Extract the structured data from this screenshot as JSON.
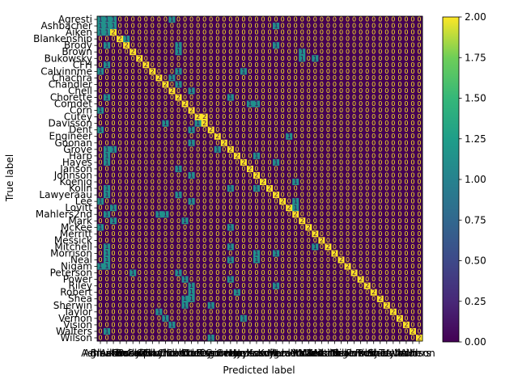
{
  "chart_data": {
    "type": "heatmap",
    "title": "",
    "xlabel": "Predicted label",
    "ylabel": "True label",
    "labels": [
      "Agresti",
      "Ashbacher",
      "Aiken",
      "Blankenship",
      "Brody",
      "Brown",
      "Bukowsky",
      "CFH",
      "Calvinnme",
      "Chachra",
      "Chandler",
      "Chell",
      "Chorette",
      "Comdet",
      "Corn",
      "Cutey",
      "Davisson",
      "Dent",
      "Engineer",
      "Goonan",
      "Grove",
      "Harp",
      "Hayes",
      "Janson",
      "Johnson",
      "Koenig",
      "Kolln",
      "Lawyeraau",
      "Lee",
      "Lovitt",
      "Mahlers2nd",
      "Mark",
      "McKee",
      "Merritt",
      "Messick",
      "Mitchell",
      "Morrison",
      "Neal",
      "Nigam",
      "Peterson",
      "Power",
      "Riley",
      "Robert",
      "Shea",
      "Sherwin",
      "Taylor",
      "Vernon",
      "Vision",
      "Walters",
      "Wilson"
    ],
    "value_range": [
      0,
      2
    ],
    "colorbar_ticks": [
      "0.00",
      "0.25",
      "0.50",
      "0.75",
      "1.00",
      "1.25",
      "1.50",
      "1.75",
      "2.00"
    ],
    "colormap": "viridis",
    "colors": {
      "zero": "#440154",
      "one": "#21918c",
      "two": "#fde725",
      "cell_text": "#fde725"
    },
    "cells": [
      [
        0,
        0,
        1
      ],
      [
        0,
        1,
        1
      ],
      [
        0,
        2,
        1
      ],
      [
        0,
        11,
        1
      ],
      [
        1,
        0,
        1
      ],
      [
        1,
        1,
        1
      ],
      [
        1,
        2,
        1
      ],
      [
        1,
        27,
        1
      ],
      [
        2,
        0,
        1
      ],
      [
        2,
        1,
        1
      ],
      [
        2,
        2,
        2
      ],
      [
        3,
        3,
        2
      ],
      [
        3,
        4,
        1
      ],
      [
        4,
        1,
        1
      ],
      [
        4,
        4,
        2
      ],
      [
        4,
        12,
        1
      ],
      [
        4,
        27,
        1
      ],
      [
        5,
        5,
        2
      ],
      [
        5,
        12,
        1
      ],
      [
        5,
        31,
        1
      ],
      [
        6,
        6,
        2
      ],
      [
        6,
        31,
        1
      ],
      [
        6,
        33,
        1
      ],
      [
        7,
        1,
        1
      ],
      [
        7,
        7,
        2
      ],
      [
        8,
        0,
        1
      ],
      [
        8,
        8,
        2
      ],
      [
        8,
        12,
        1
      ],
      [
        8,
        22,
        1
      ],
      [
        9,
        9,
        2
      ],
      [
        9,
        11,
        1
      ],
      [
        10,
        10,
        2
      ],
      [
        10,
        12,
        1
      ],
      [
        11,
        11,
        2
      ],
      [
        11,
        14,
        1
      ],
      [
        12,
        1,
        1
      ],
      [
        12,
        12,
        2
      ],
      [
        12,
        20,
        1
      ],
      [
        13,
        13,
        2
      ],
      [
        13,
        23,
        1
      ],
      [
        13,
        24,
        1
      ],
      [
        14,
        0,
        1
      ],
      [
        14,
        14,
        2
      ],
      [
        15,
        15,
        2
      ],
      [
        15,
        16,
        2
      ],
      [
        16,
        10,
        1
      ],
      [
        16,
        16,
        2
      ],
      [
        16,
        15,
        1
      ],
      [
        17,
        0,
        1
      ],
      [
        17,
        17,
        2
      ],
      [
        17,
        14,
        1
      ],
      [
        18,
        18,
        2
      ],
      [
        18,
        29,
        1
      ],
      [
        19,
        14,
        1
      ],
      [
        19,
        19,
        2
      ],
      [
        20,
        1,
        1
      ],
      [
        20,
        2,
        1
      ],
      [
        20,
        20,
        2
      ],
      [
        20,
        18,
        1
      ],
      [
        21,
        1,
        1
      ],
      [
        21,
        21,
        2
      ],
      [
        21,
        24,
        1
      ],
      [
        22,
        1,
        1
      ],
      [
        22,
        22,
        2
      ],
      [
        22,
        27,
        1
      ],
      [
        23,
        23,
        2
      ],
      [
        23,
        12,
        1
      ],
      [
        24,
        24,
        2
      ],
      [
        24,
        14,
        1
      ],
      [
        25,
        25,
        2
      ],
      [
        25,
        30,
        1
      ],
      [
        26,
        1,
        1
      ],
      [
        26,
        26,
        2
      ],
      [
        26,
        20,
        1
      ],
      [
        26,
        24,
        1
      ],
      [
        27,
        1,
        1
      ],
      [
        27,
        27,
        2
      ],
      [
        27,
        12,
        1
      ],
      [
        28,
        0,
        1
      ],
      [
        28,
        28,
        2
      ],
      [
        28,
        14,
        1
      ],
      [
        28,
        30,
        1
      ],
      [
        29,
        2,
        1
      ],
      [
        29,
        29,
        2
      ],
      [
        29,
        30,
        1
      ],
      [
        30,
        1,
        1
      ],
      [
        30,
        30,
        2
      ],
      [
        30,
        9,
        1
      ],
      [
        30,
        10,
        1
      ],
      [
        31,
        2,
        1
      ],
      [
        31,
        31,
        2
      ],
      [
        31,
        13,
        1
      ],
      [
        32,
        0,
        1
      ],
      [
        32,
        32,
        2
      ],
      [
        32,
        20,
        1
      ],
      [
        33,
        33,
        2
      ],
      [
        34,
        34,
        2
      ],
      [
        35,
        1,
        1
      ],
      [
        35,
        35,
        2
      ],
      [
        35,
        20,
        1
      ],
      [
        35,
        33,
        1
      ],
      [
        36,
        1,
        1
      ],
      [
        36,
        36,
        2
      ],
      [
        36,
        24,
        1
      ],
      [
        36,
        27,
        1
      ],
      [
        37,
        1,
        1
      ],
      [
        37,
        37,
        2
      ],
      [
        37,
        20,
        1
      ],
      [
        37,
        24,
        1
      ],
      [
        38,
        0,
        1
      ],
      [
        38,
        38,
        2
      ],
      [
        38,
        1,
        1
      ],
      [
        39,
        5,
        1
      ],
      [
        39,
        39,
        2
      ],
      [
        39,
        12,
        1
      ],
      [
        40,
        13,
        1
      ],
      [
        40,
        40,
        2
      ],
      [
        40,
        20,
        1
      ],
      [
        41,
        14,
        1
      ],
      [
        41,
        41,
        2
      ],
      [
        41,
        27,
        1
      ],
      [
        42,
        14,
        1
      ],
      [
        42,
        42,
        2
      ],
      [
        42,
        21,
        1
      ],
      [
        43,
        13,
        1
      ],
      [
        43,
        43,
        2
      ],
      [
        43,
        14,
        1
      ],
      [
        44,
        13,
        1
      ],
      [
        44,
        44,
        2
      ],
      [
        44,
        17,
        1
      ],
      [
        45,
        9,
        1
      ],
      [
        45,
        45,
        2
      ],
      [
        46,
        10,
        1
      ],
      [
        46,
        46,
        2
      ],
      [
        46,
        22,
        1
      ],
      [
        47,
        11,
        1
      ],
      [
        47,
        47,
        2
      ],
      [
        48,
        1,
        1
      ],
      [
        48,
        48,
        2
      ],
      [
        49,
        17,
        1
      ],
      [
        49,
        49,
        2
      ]
    ]
  }
}
